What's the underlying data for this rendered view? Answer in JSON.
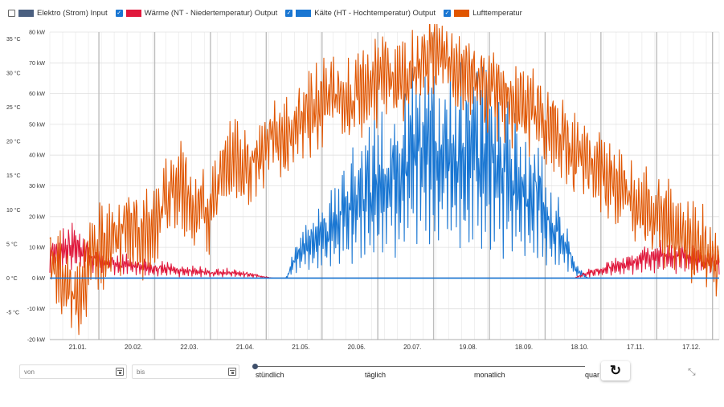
{
  "legend": [
    {
      "label": "Elektro (Strom) Input",
      "checked": false,
      "color": "#4a5f80"
    },
    {
      "label": "Wärme (NT - Niedertemperatur) Output",
      "checked": true,
      "color": "#e0183c"
    },
    {
      "label": "Kälte (HT - Hochtemperatur) Output",
      "checked": true,
      "color": "#1976d2"
    },
    {
      "label": "Lufttemperatur",
      "checked": true,
      "color": "#e05500"
    }
  ],
  "chart_data": {
    "type": "line",
    "x_labels": [
      "21.01.",
      "20.02.",
      "22.03.",
      "21.04.",
      "21.05.",
      "20.06.",
      "20.07.",
      "19.08.",
      "18.09.",
      "18.10.",
      "17.11.",
      "17.12."
    ],
    "y_left": {
      "labels": [
        "-5 °C",
        "0 °C",
        "5 °C",
        "10 °C",
        "15 °C",
        "20 °C",
        "25 °C",
        "30 °C",
        "35 °C"
      ],
      "range": [
        -9,
        36
      ]
    },
    "y_right": {
      "labels": [
        "-20 kW",
        "-10 kW",
        "0 kW",
        "10 kW",
        "20 kW",
        "30 kW",
        "40 kW",
        "50 kW",
        "60 kW",
        "70 kW",
        "80 kW"
      ],
      "range": [
        -20,
        80
      ]
    },
    "grid": true,
    "series": [
      {
        "name": "Kälte (HT - Hochtemperatur) Output",
        "unit": "kW",
        "color": "#1976d2",
        "weekly": [
          0,
          0,
          0,
          0,
          0,
          0,
          0,
          0,
          0,
          0,
          0,
          0,
          0,
          0,
          0,
          0,
          0,
          0,
          0,
          15,
          20,
          25,
          30,
          40,
          45,
          55,
          55,
          60,
          65,
          70,
          70,
          68,
          70,
          65,
          60,
          55,
          50,
          45,
          30,
          25,
          5,
          0,
          0,
          0,
          0,
          0,
          0,
          0,
          0,
          0,
          0,
          0
        ]
      },
      {
        "name": "Wärme (NT - Niedertemperatur) Output",
        "unit": "kW",
        "color": "#e0183c",
        "weekly": [
          12,
          15,
          18,
          12,
          10,
          8,
          8,
          6,
          5,
          5,
          4,
          4,
          3,
          3,
          3,
          2,
          1,
          0,
          0,
          0,
          0,
          0,
          0,
          0,
          0,
          0,
          0,
          0,
          0,
          0,
          0,
          0,
          0,
          0,
          0,
          0,
          0,
          0,
          0,
          0,
          0,
          3,
          4,
          6,
          8,
          10,
          12,
          14,
          12,
          10,
          10,
          8
        ]
      },
      {
        "name": "Lufttemperatur",
        "unit": "°C",
        "color": "#e05500",
        "weekly": [
          3,
          0,
          -3,
          2,
          5,
          6,
          8,
          6,
          7,
          12,
          14,
          10,
          9,
          15,
          17,
          16,
          18,
          22,
          20,
          23,
          24,
          26,
          27,
          25,
          28,
          29,
          30,
          28,
          31,
          32,
          33,
          31,
          30,
          28,
          27,
          26,
          25,
          24,
          23,
          20,
          18,
          17,
          16,
          14,
          12,
          10,
          9,
          8,
          6,
          5,
          4,
          3
        ]
      }
    ]
  },
  "controls": {
    "from_placeholder": "von",
    "to_placeholder": "bis",
    "slider_labels": [
      "stündlich",
      "täglich",
      "monatlich",
      "quar"
    ],
    "reset_icon": "↻",
    "collapse_icon": "⤡"
  }
}
